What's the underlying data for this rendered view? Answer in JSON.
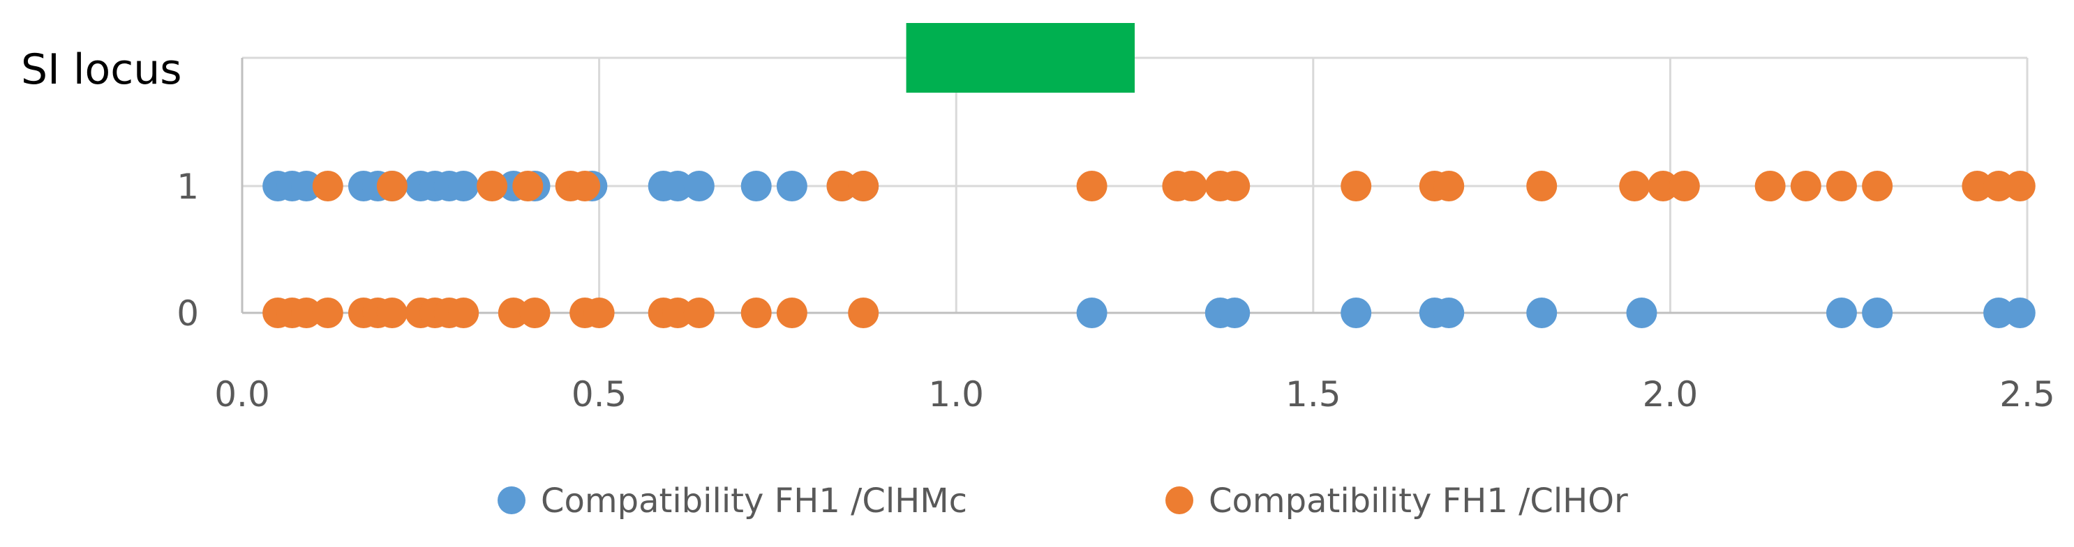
{
  "chart_data": {
    "type": "scatter",
    "title": "SI locus",
    "xlim": [
      0.0,
      2.5
    ],
    "ylim": [
      0,
      1
    ],
    "x_ticks": [
      "0.0",
      "0.5",
      "1.0",
      "1.5",
      "2.0",
      "2.5"
    ],
    "y_ticks": [
      "0",
      "1"
    ],
    "grid": true,
    "legend_position": "bottom",
    "highlight_region": {
      "x_start": 0.93,
      "x_end": 1.25,
      "color": "#00B050"
    },
    "series": [
      {
        "name": "Compatibility FH1 /ClHMc",
        "color": "#5B9BD5",
        "points": [
          {
            "x": 0.05,
            "y": 1
          },
          {
            "x": 0.07,
            "y": 1
          },
          {
            "x": 0.09,
            "y": 1
          },
          {
            "x": 0.17,
            "y": 1
          },
          {
            "x": 0.19,
            "y": 1
          },
          {
            "x": 0.21,
            "y": 1
          },
          {
            "x": 0.25,
            "y": 1
          },
          {
            "x": 0.27,
            "y": 1
          },
          {
            "x": 0.29,
            "y": 1
          },
          {
            "x": 0.31,
            "y": 1
          },
          {
            "x": 0.38,
            "y": 1
          },
          {
            "x": 0.41,
            "y": 1
          },
          {
            "x": 0.49,
            "y": 1
          },
          {
            "x": 0.59,
            "y": 1
          },
          {
            "x": 0.61,
            "y": 1
          },
          {
            "x": 0.64,
            "y": 1
          },
          {
            "x": 0.72,
            "y": 1
          },
          {
            "x": 0.77,
            "y": 1
          },
          {
            "x": 0.84,
            "y": 1
          },
          {
            "x": 0.87,
            "y": 1
          },
          {
            "x": 1.19,
            "y": 0
          },
          {
            "x": 1.37,
            "y": 0
          },
          {
            "x": 1.39,
            "y": 0
          },
          {
            "x": 1.56,
            "y": 0
          },
          {
            "x": 1.67,
            "y": 0
          },
          {
            "x": 1.69,
            "y": 0
          },
          {
            "x": 1.82,
            "y": 0
          },
          {
            "x": 1.96,
            "y": 0
          },
          {
            "x": 2.24,
            "y": 0
          },
          {
            "x": 2.29,
            "y": 0
          },
          {
            "x": 2.46,
            "y": 0
          },
          {
            "x": 2.49,
            "y": 0
          }
        ]
      },
      {
        "name": "Compatibility FH1 /ClHOr",
        "color": "#ED7D31",
        "points": [
          {
            "x": 0.05,
            "y": 0
          },
          {
            "x": 0.07,
            "y": 0
          },
          {
            "x": 0.09,
            "y": 0
          },
          {
            "x": 0.12,
            "y": 0
          },
          {
            "x": 0.17,
            "y": 0
          },
          {
            "x": 0.19,
            "y": 0
          },
          {
            "x": 0.21,
            "y": 0
          },
          {
            "x": 0.25,
            "y": 0
          },
          {
            "x": 0.27,
            "y": 0
          },
          {
            "x": 0.29,
            "y": 0
          },
          {
            "x": 0.31,
            "y": 0
          },
          {
            "x": 0.38,
            "y": 0
          },
          {
            "x": 0.41,
            "y": 0
          },
          {
            "x": 0.48,
            "y": 0
          },
          {
            "x": 0.5,
            "y": 0
          },
          {
            "x": 0.59,
            "y": 0
          },
          {
            "x": 0.61,
            "y": 0
          },
          {
            "x": 0.64,
            "y": 0
          },
          {
            "x": 0.72,
            "y": 0
          },
          {
            "x": 0.77,
            "y": 0
          },
          {
            "x": 0.87,
            "y": 0
          },
          {
            "x": 0.12,
            "y": 1
          },
          {
            "x": 0.21,
            "y": 1
          },
          {
            "x": 0.35,
            "y": 1
          },
          {
            "x": 0.4,
            "y": 1
          },
          {
            "x": 0.46,
            "y": 1
          },
          {
            "x": 0.48,
            "y": 1
          },
          {
            "x": 0.84,
            "y": 1
          },
          {
            "x": 0.87,
            "y": 1
          },
          {
            "x": 1.19,
            "y": 1
          },
          {
            "x": 1.31,
            "y": 1
          },
          {
            "x": 1.33,
            "y": 1
          },
          {
            "x": 1.37,
            "y": 1
          },
          {
            "x": 1.39,
            "y": 1
          },
          {
            "x": 1.56,
            "y": 1
          },
          {
            "x": 1.67,
            "y": 1
          },
          {
            "x": 1.69,
            "y": 1
          },
          {
            "x": 1.82,
            "y": 1
          },
          {
            "x": 1.95,
            "y": 1
          },
          {
            "x": 1.99,
            "y": 1
          },
          {
            "x": 2.02,
            "y": 1
          },
          {
            "x": 2.14,
            "y": 1
          },
          {
            "x": 2.19,
            "y": 1
          },
          {
            "x": 2.24,
            "y": 1
          },
          {
            "x": 2.29,
            "y": 1
          },
          {
            "x": 2.43,
            "y": 1
          },
          {
            "x": 2.46,
            "y": 1
          },
          {
            "x": 2.49,
            "y": 1
          }
        ]
      }
    ]
  }
}
